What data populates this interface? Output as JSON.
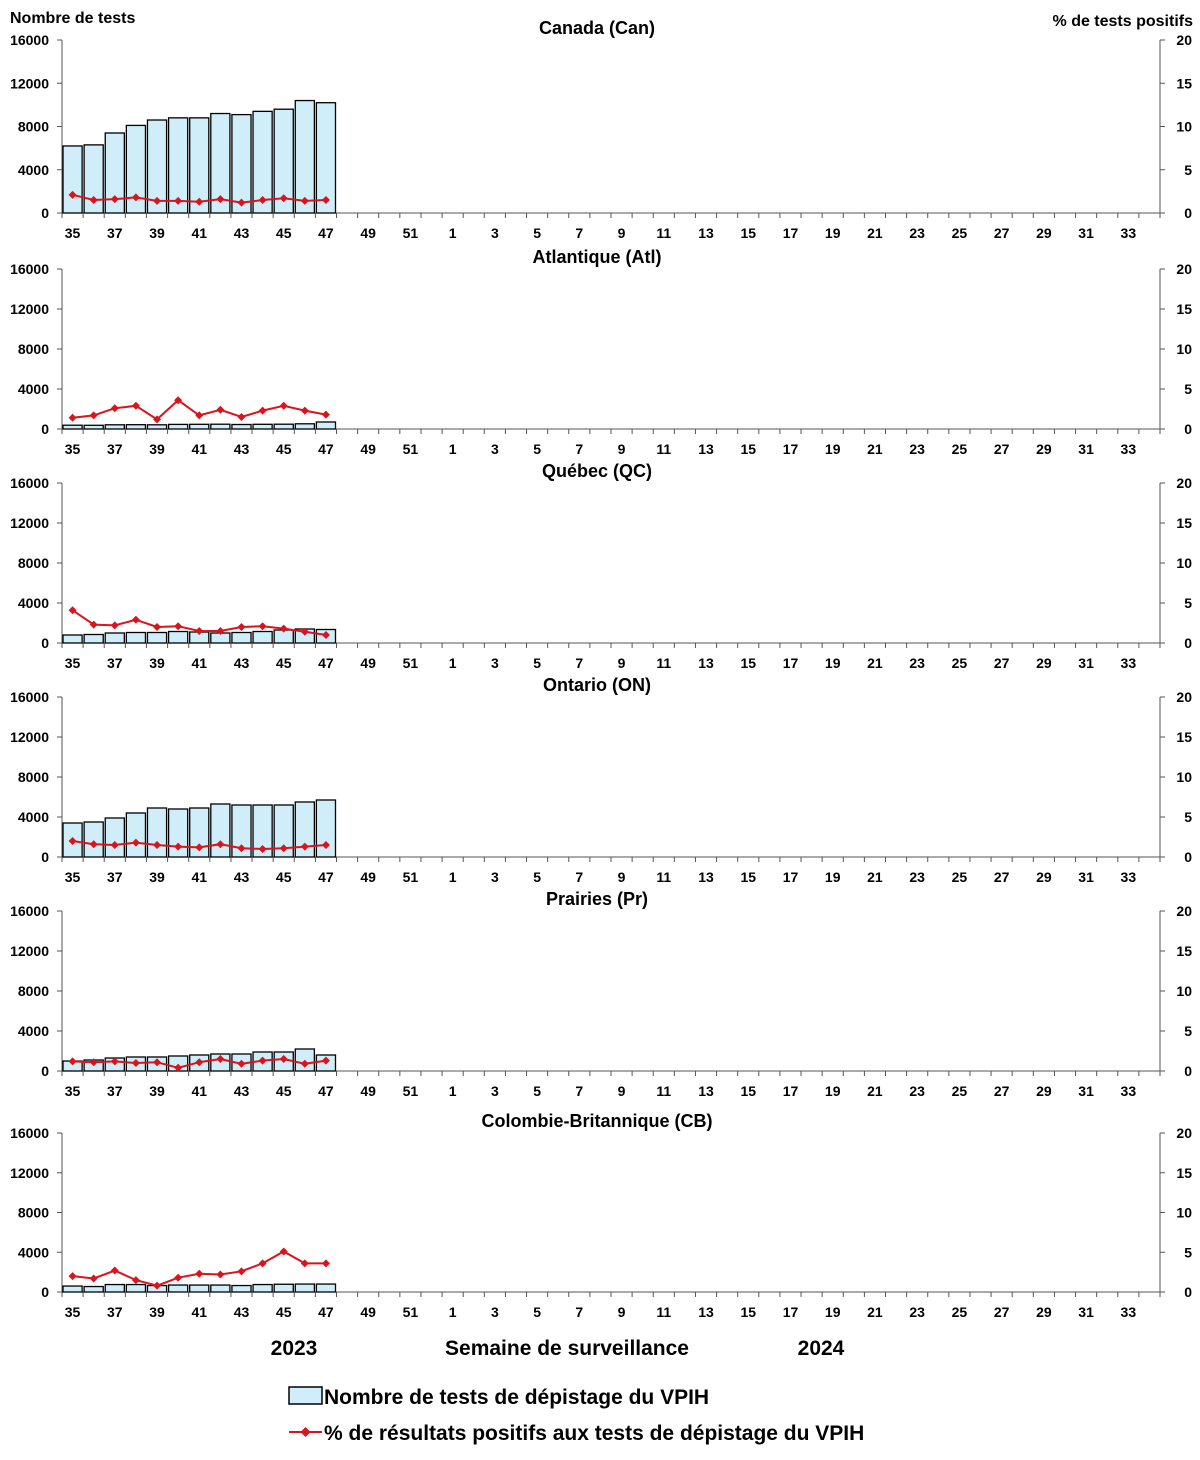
{
  "chart_data": {
    "type": "bar+line",
    "left_axis_title": "Nombre de tests",
    "right_axis_title": "% de tests positifs",
    "y_left_ticks": [
      "0",
      "4000",
      "8000",
      "12000",
      "16000"
    ],
    "y_right_ticks": [
      "0",
      "5",
      "10",
      "15",
      "20"
    ],
    "ylim_left": [
      0,
      16000
    ],
    "ylim_right": [
      0,
      20
    ],
    "weeks": [
      35,
      36,
      37,
      38,
      39,
      40,
      41,
      42,
      43,
      44,
      45,
      46,
      47,
      48,
      49,
      50,
      51,
      52,
      1,
      2,
      3,
      4,
      5,
      6,
      7,
      8,
      9,
      10,
      11,
      12,
      13,
      14,
      15,
      16,
      17,
      18,
      19,
      20,
      21,
      22,
      23,
      24,
      25,
      26,
      27,
      28,
      29,
      30,
      31,
      32,
      33,
      34
    ],
    "week_labels": [
      "35",
      "37",
      "39",
      "41",
      "43",
      "45",
      "47",
      "49",
      "51",
      "1",
      "3",
      "5",
      "7",
      "9",
      "11",
      "13",
      "15",
      "17",
      "19",
      "21",
      "23",
      "25",
      "27",
      "29",
      "31",
      "33"
    ],
    "xlabel": "Semaine de surveillance",
    "year_labels": [
      "2023",
      "2024"
    ],
    "legend": {
      "bars": "Nombre de tests de dépistage du VPIH",
      "line": "% de résultats positifs aux tests de dépistage du VPIH"
    },
    "colors": {
      "bar_fill": "#cfeefa",
      "bar_stroke": "#000000",
      "line": "#d9141c"
    },
    "panels": [
      {
        "title": "Canada (Can)",
        "tests": [
          6200,
          6300,
          7400,
          8100,
          8600,
          8800,
          8800,
          9200,
          9100,
          9400,
          9600,
          10400,
          10200
        ],
        "pct_positive": [
          2.1,
          1.5,
          1.6,
          1.8,
          1.4,
          1.4,
          1.3,
          1.6,
          1.2,
          1.5,
          1.7,
          1.4,
          1.5
        ]
      },
      {
        "title": "Atlantique (Atl)",
        "tests": [
          380,
          370,
          420,
          430,
          420,
          460,
          470,
          480,
          450,
          470,
          480,
          520,
          700
        ],
        "pct_positive": [
          1.4,
          1.7,
          2.6,
          2.9,
          1.2,
          3.6,
          1.7,
          2.4,
          1.5,
          2.3,
          2.9,
          2.3,
          1.8
        ]
      },
      {
        "title": "Québec (QC)",
        "tests": [
          800,
          850,
          1000,
          1050,
          1050,
          1150,
          1100,
          1000,
          1050,
          1150,
          1300,
          1400,
          1350
        ],
        "pct_positive": [
          4.1,
          2.3,
          2.2,
          2.9,
          2.0,
          2.1,
          1.5,
          1.5,
          2.0,
          2.1,
          1.8,
          1.4,
          1.0
        ]
      },
      {
        "title": "Ontario (ON)",
        "tests": [
          3400,
          3500,
          3900,
          4400,
          4900,
          4800,
          4900,
          5300,
          5200,
          5200,
          5200,
          5500,
          5700
        ],
        "pct_positive": [
          2.0,
          1.6,
          1.5,
          1.8,
          1.5,
          1.3,
          1.2,
          1.6,
          1.1,
          1.0,
          1.1,
          1.3,
          1.5
        ]
      },
      {
        "title": "Prairies (Pr)",
        "tests": [
          1000,
          1100,
          1300,
          1400,
          1400,
          1500,
          1600,
          1700,
          1700,
          1900,
          1900,
          2200,
          1600
        ],
        "pct_positive": [
          1.2,
          1.1,
          1.2,
          1.0,
          1.1,
          0.4,
          1.1,
          1.5,
          0.9,
          1.3,
          1.5,
          0.9,
          1.3
        ]
      },
      {
        "title": "Colombie-Britannique (CB)",
        "tests": [
          600,
          550,
          750,
          750,
          650,
          700,
          700,
          700,
          650,
          750,
          780,
          800,
          800
        ],
        "pct_positive": [
          2.0,
          1.7,
          2.7,
          1.5,
          0.8,
          1.8,
          2.3,
          2.2,
          2.6,
          3.6,
          5.1,
          3.6,
          3.6
        ]
      }
    ]
  }
}
